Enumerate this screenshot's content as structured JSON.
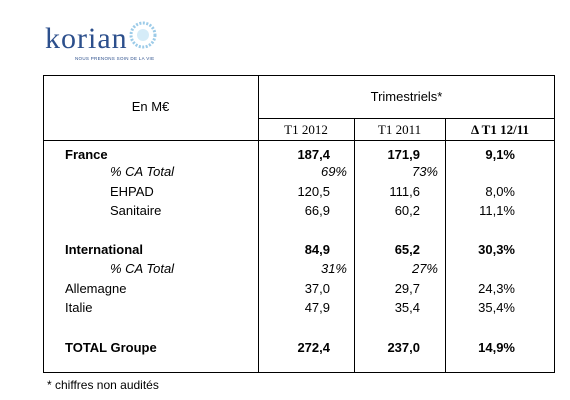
{
  "logo": {
    "name": "korian",
    "tagline": "NOUS PRENONS SOIN DE LA VIE"
  },
  "table": {
    "unit_header": "En M€",
    "group_header": "Trimestriels*",
    "columns": [
      "T1 2012",
      "T1 2011",
      "Δ T1 12/11"
    ],
    "rows": [
      {
        "label": "France",
        "values": [
          "187,4",
          "171,9",
          "9,1%"
        ]
      },
      {
        "label": "% CA Total",
        "values": [
          "69%",
          "73%"
        ]
      },
      {
        "label": "EHPAD",
        "values": [
          "120,5",
          "111,6",
          "8,0%"
        ]
      },
      {
        "label": "Sanitaire",
        "values": [
          "66,9",
          "60,2",
          "11,1%"
        ]
      },
      {
        "label": "International",
        "values": [
          "84,9",
          "65,2",
          "30,3%"
        ]
      },
      {
        "label": "% CA Total",
        "values": [
          "31%",
          "27%"
        ]
      },
      {
        "label": "Allemagne",
        "values": [
          "37,0",
          "29,7",
          "24,3%"
        ]
      },
      {
        "label": "Italie",
        "values": [
          "47,9",
          "35,4",
          "35,4%"
        ]
      },
      {
        "label": "TOTAL Groupe",
        "values": [
          "272,4",
          "237,0",
          "14,9%"
        ]
      }
    ]
  },
  "footnote": "* chiffres non audités"
}
